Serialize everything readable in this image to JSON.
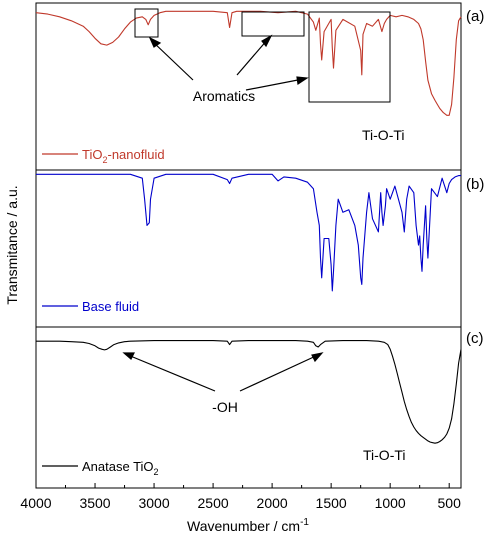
{
  "chart_data": {
    "type": "line",
    "xlabel": "Wavenumber / cm",
    "xlabel_sup": "-1",
    "ylabel": "Transmitance / a.u.",
    "xlim": [
      4000,
      400
    ],
    "x_ticks": [
      "4000",
      "3500",
      "3000",
      "2500",
      "2000",
      "1500",
      "1000",
      "500"
    ],
    "panels": [
      {
        "tag": "(a)",
        "legend_prefix": "TiO",
        "legend_sub": "2",
        "legend_suffix": "-nanofluid",
        "color": "#c0392b",
        "annotations": [
          "Aromatics",
          "Ti-O-Ti"
        ],
        "series": {
          "x": [
            4000,
            3900,
            3800,
            3700,
            3600,
            3550,
            3500,
            3450,
            3400,
            3350,
            3300,
            3250,
            3200,
            3150,
            3100,
            3070,
            3050,
            3030,
            3000,
            2950,
            2900,
            2800,
            2500,
            2380,
            2360,
            2340,
            2300,
            2100,
            1950,
            1800,
            1700,
            1650,
            1630,
            1600,
            1590,
            1580,
            1560,
            1500,
            1490,
            1480,
            1460,
            1400,
            1300,
            1250,
            1240,
            1230,
            1200,
            1150,
            1100,
            1070,
            1050,
            1030,
            1000,
            950,
            900,
            850,
            800,
            760,
            740,
            720,
            700,
            680,
            650,
            620,
            600,
            580,
            550,
            520,
            500,
            480,
            460,
            440,
            420,
            400
          ],
          "y": [
            98,
            97,
            95,
            92,
            88,
            84,
            79,
            75,
            74,
            76,
            80,
            86,
            91,
            94,
            95,
            93,
            89,
            93,
            96,
            98,
            99,
            99,
            99,
            98,
            87,
            98,
            99,
            99,
            98,
            99,
            97,
            91,
            85,
            94,
            75,
            63,
            84,
            93,
            72,
            57,
            85,
            93,
            88,
            70,
            52,
            82,
            90,
            88,
            93,
            84,
            90,
            93,
            96,
            95,
            96,
            95,
            93,
            90,
            86,
            78,
            62,
            48,
            38,
            33,
            30,
            27,
            24,
            22,
            22,
            30,
            50,
            78,
            92,
            95
          ]
        }
      },
      {
        "tag": "(b)",
        "legend": "Base fluid",
        "color": "#0000cc",
        "series": {
          "x": [
            4000,
            3500,
            3200,
            3100,
            3080,
            3060,
            3040,
            3030,
            3000,
            2900,
            2500,
            2380,
            2360,
            2340,
            2200,
            2000,
            1950,
            1900,
            1800,
            1700,
            1650,
            1620,
            1600,
            1590,
            1580,
            1560,
            1520,
            1500,
            1490,
            1480,
            1460,
            1440,
            1400,
            1350,
            1300,
            1270,
            1250,
            1240,
            1230,
            1200,
            1180,
            1150,
            1100,
            1080,
            1070,
            1060,
            1040,
            1030,
            1000,
            960,
            900,
            880,
            860,
            840,
            800,
            780,
            760,
            750,
            740,
            730,
            720,
            700,
            690,
            680,
            650,
            600,
            560,
            520,
            500,
            480,
            450,
            420,
            400
          ],
          "y": [
            99,
            99,
            99,
            96,
            80,
            60,
            62,
            80,
            96,
            99,
            99,
            95,
            92,
            96,
            99,
            99,
            94,
            97,
            96,
            93,
            88,
            70,
            60,
            35,
            20,
            50,
            50,
            30,
            10,
            25,
            60,
            80,
            70,
            72,
            60,
            45,
            20,
            15,
            35,
            70,
            85,
            65,
            55,
            85,
            70,
            60,
            75,
            88,
            80,
            90,
            70,
            55,
            80,
            90,
            85,
            60,
            45,
            52,
            35,
            25,
            45,
            75,
            50,
            35,
            88,
            82,
            96,
            85,
            92,
            95,
            97,
            98,
            98
          ]
        }
      },
      {
        "tag": "(c)",
        "legend_prefix": "Anatase TiO",
        "legend_sub": "2",
        "color": "#000000",
        "annotations": [
          "-OH",
          "Ti-O-Ti"
        ],
        "series": {
          "x": [
            4000,
            3800,
            3700,
            3600,
            3550,
            3500,
            3470,
            3440,
            3420,
            3400,
            3370,
            3340,
            3300,
            3250,
            3200,
            3000,
            2800,
            2500,
            2380,
            2360,
            2340,
            2200,
            2000,
            1800,
            1700,
            1650,
            1630,
            1610,
            1590,
            1550,
            1400,
            1200,
            1100,
            1050,
            1020,
            1000,
            980,
            960,
            940,
            920,
            900,
            880,
            860,
            840,
            820,
            800,
            780,
            760,
            740,
            720,
            700,
            680,
            660,
            640,
            620,
            600,
            580,
            560,
            540,
            520,
            500,
            480,
            460,
            440,
            420,
            400
          ],
          "y": [
            99,
            99,
            98.5,
            98,
            97,
            95,
            93,
            92,
            91.5,
            92,
            94,
            96,
            97.5,
            98.5,
            99,
            99.5,
            99.5,
            99.5,
            99,
            96,
            99,
            99.5,
            99.5,
            99.5,
            99,
            98,
            95,
            94,
            96,
            99,
            99.5,
            99.5,
            99,
            98,
            96,
            92,
            86,
            79,
            71,
            63,
            55,
            47,
            40,
            34,
            29,
            25,
            22,
            19.5,
            17.5,
            16,
            14.5,
            13,
            12,
            11.5,
            11,
            11.5,
            12.5,
            14,
            16,
            19,
            24,
            32,
            45,
            62,
            80,
            92
          ]
        }
      }
    ]
  }
}
